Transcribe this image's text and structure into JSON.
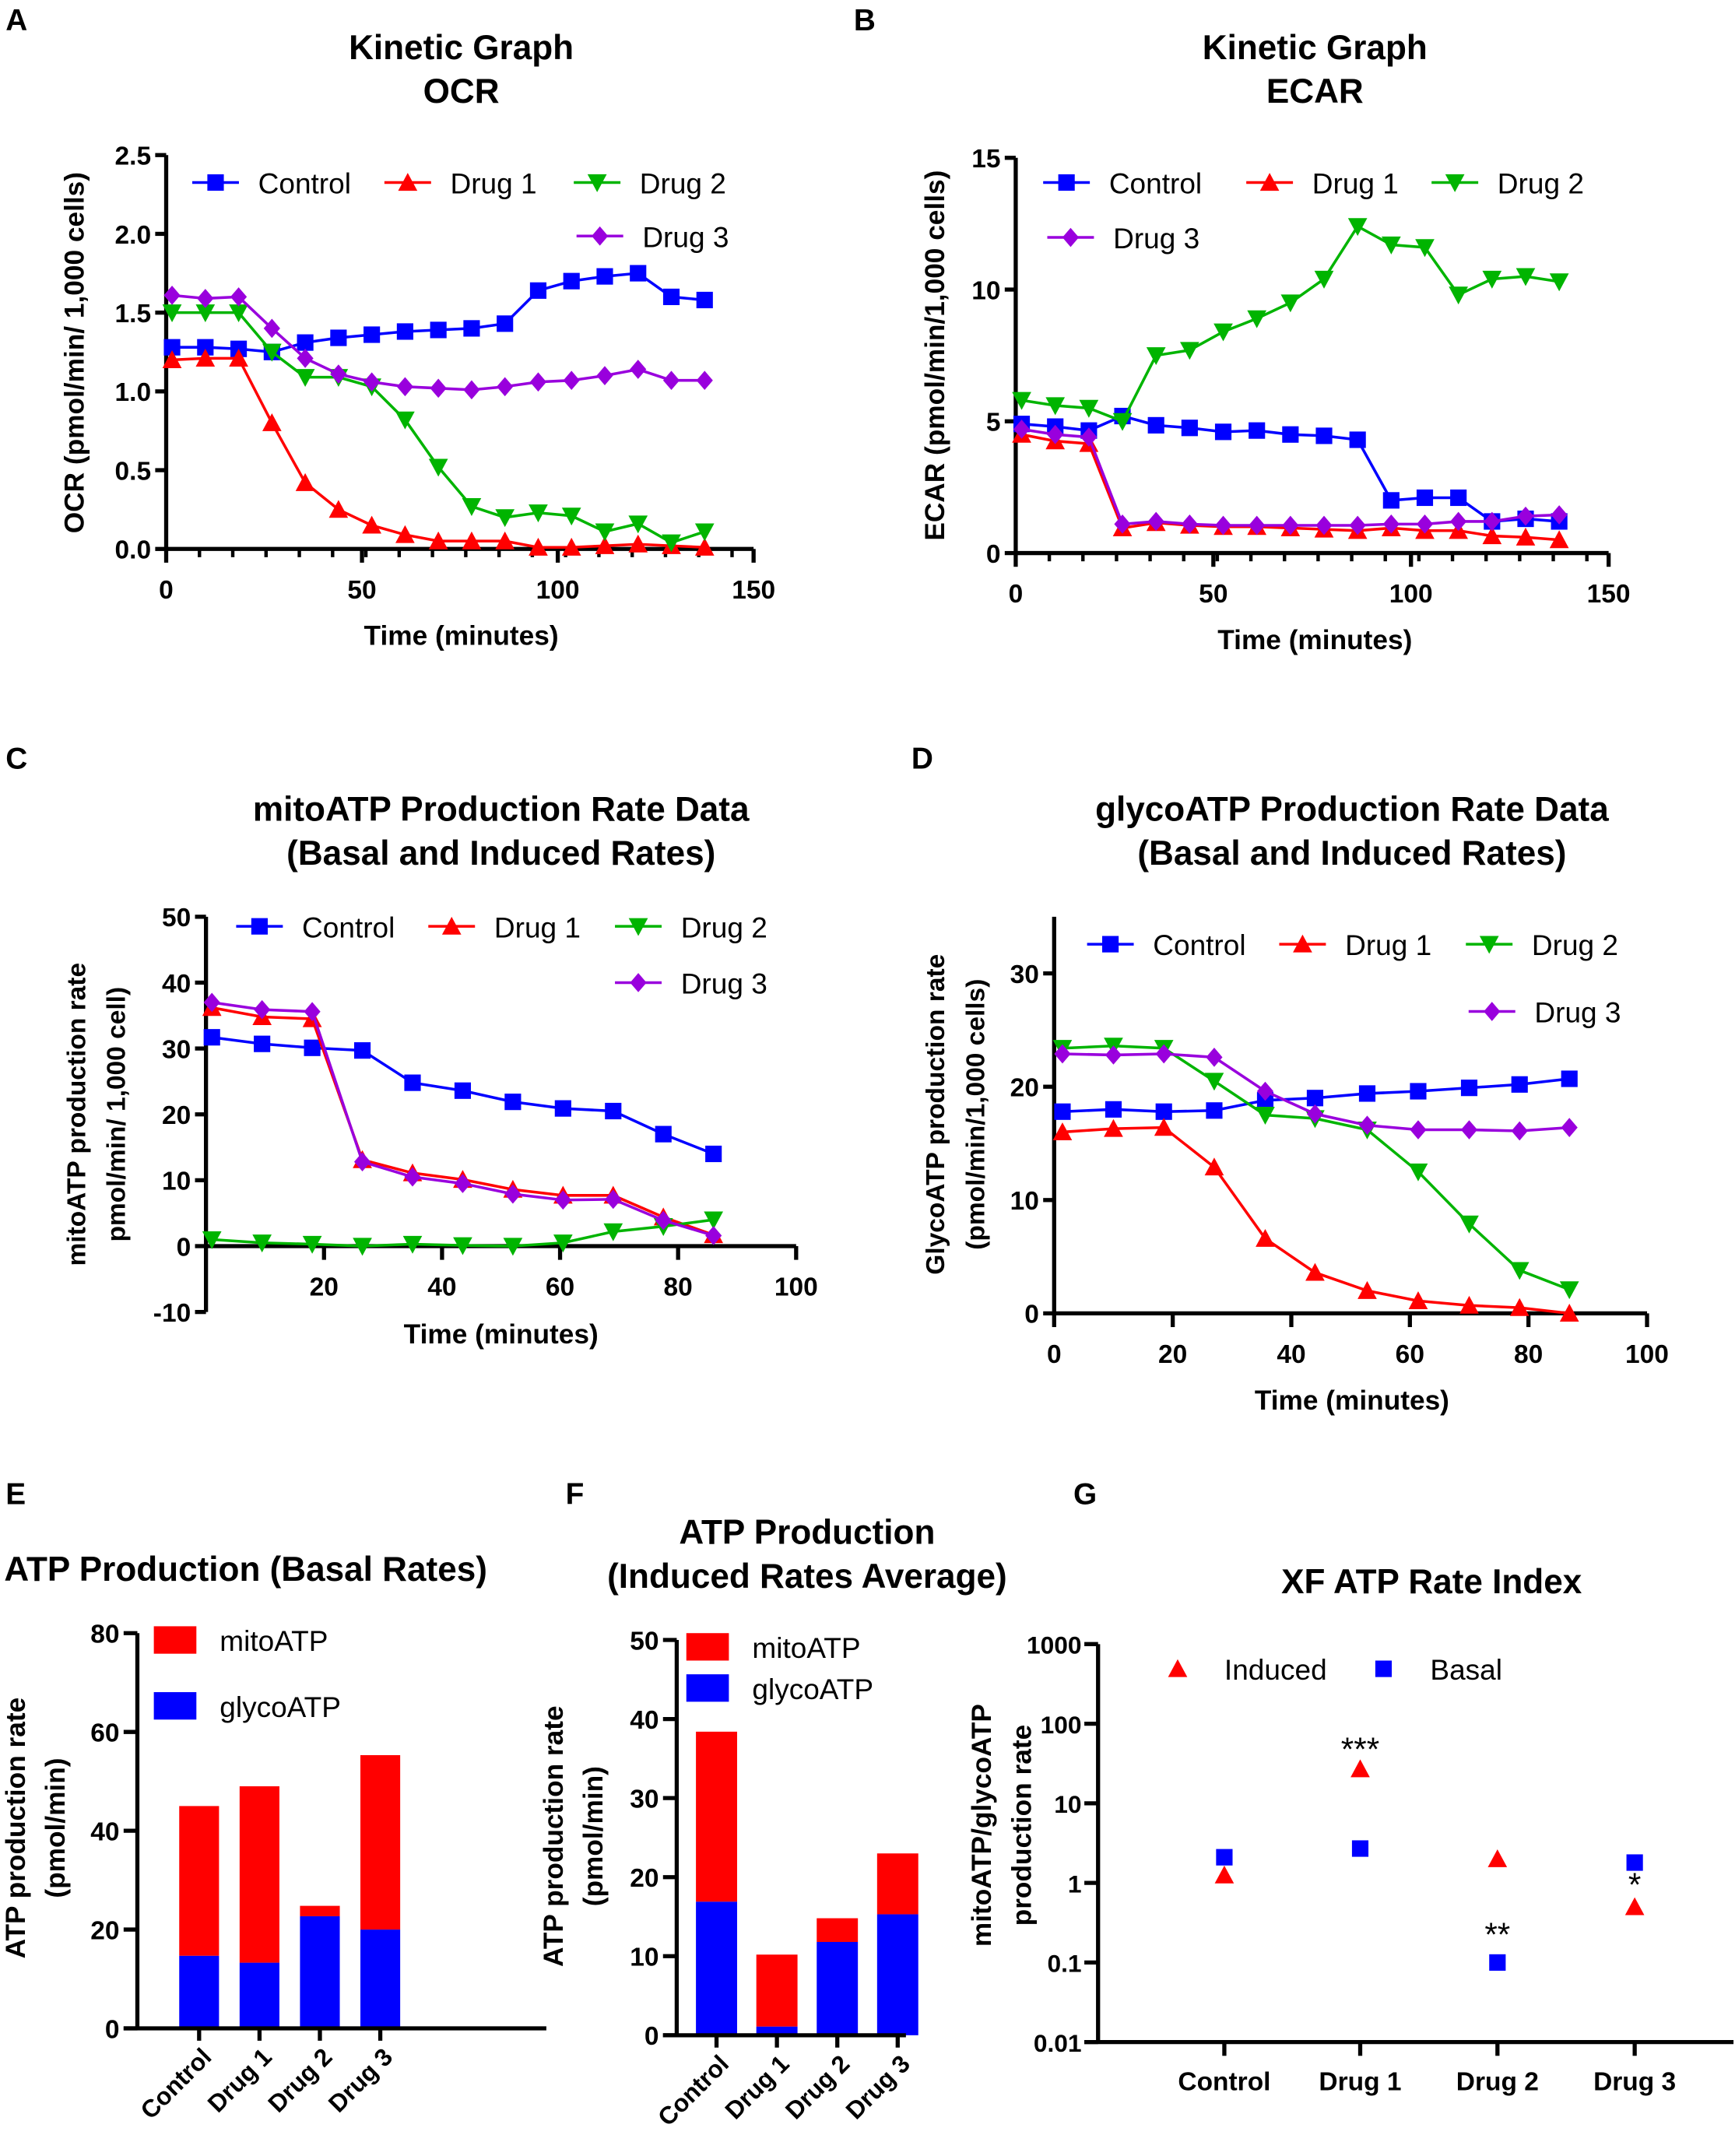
{
  "colors": {
    "Control": "#0000ff",
    "Drug 1": "#ff0000",
    "Drug 2": "#00b400",
    "Drug 3": "#9900dd",
    "mitoATP": "#ff0000",
    "glycoATP": "#0000ff",
    "Induced": "#ff0000",
    "Basal": "#0000ff"
  },
  "chart_data": [
    {
      "panel": "A",
      "type": "line",
      "title": [
        "Kinetic Graph",
        "OCR"
      ],
      "xlabel": "Time (minutes)",
      "ylabel": [
        "OCR (pmol/min/ 1,000 cells)"
      ],
      "xlim": [
        0,
        150
      ],
      "ylim": [
        0,
        2.5
      ],
      "xticks": [
        "0",
        "50",
        "100",
        "150"
      ],
      "yticks": [
        "0.0",
        "0.5",
        "1.0",
        "1.5",
        "2.0",
        "2.5"
      ],
      "legend": "top",
      "x": [
        1.5,
        10,
        18.5,
        27,
        35.5,
        44,
        52.5,
        61,
        69.5,
        78,
        86.5,
        95,
        103.5,
        112,
        120.5,
        129,
        137.5
      ],
      "series": [
        {
          "name": "Control",
          "marker": "square",
          "values": [
            1.28,
            1.28,
            1.27,
            1.25,
            1.31,
            1.34,
            1.36,
            1.38,
            1.39,
            1.4,
            1.43,
            1.64,
            1.7,
            1.73,
            1.75,
            1.6,
            1.58
          ]
        },
        {
          "name": "Drug 1",
          "marker": "triangle-up",
          "values": [
            1.2,
            1.21,
            1.21,
            0.8,
            0.42,
            0.25,
            0.15,
            0.09,
            0.05,
            0.05,
            0.05,
            0.01,
            0.01,
            0.02,
            0.03,
            0.02,
            0.01
          ]
        },
        {
          "name": "Drug 2",
          "marker": "triangle-down",
          "values": [
            1.5,
            1.5,
            1.5,
            1.25,
            1.09,
            1.09,
            1.03,
            0.82,
            0.52,
            0.27,
            0.2,
            0.23,
            0.21,
            0.11,
            0.16,
            0.04,
            0.11
          ]
        },
        {
          "name": "Drug 3",
          "marker": "diamond",
          "values": [
            1.61,
            1.59,
            1.6,
            1.4,
            1.21,
            1.11,
            1.06,
            1.03,
            1.02,
            1.01,
            1.03,
            1.06,
            1.07,
            1.1,
            1.14,
            1.07,
            1.07
          ]
        }
      ]
    },
    {
      "panel": "B",
      "type": "line",
      "title": [
        "Kinetic Graph",
        "ECAR"
      ],
      "xlabel": "Time (minutes)",
      "ylabel": [
        "ECAR (pmol/min/1,000 cells)"
      ],
      "xlim": [
        0,
        150
      ],
      "ylim": [
        0,
        15
      ],
      "xticks": [
        "0",
        "50",
        "100",
        "150"
      ],
      "yticks": [
        "0",
        "5",
        "10",
        "15"
      ],
      "legend": "top",
      "x": [
        1.5,
        10,
        18.5,
        27,
        35.5,
        44,
        52.5,
        61,
        69.5,
        78,
        86.5,
        95,
        103.5,
        112,
        120.5,
        129,
        137.5
      ],
      "series": [
        {
          "name": "Control",
          "marker": "square",
          "values": [
            4.9,
            4.8,
            4.65,
            5.2,
            4.85,
            4.75,
            4.6,
            4.65,
            4.5,
            4.45,
            4.3,
            2.0,
            2.1,
            2.1,
            1.2,
            1.3,
            1.2
          ]
        },
        {
          "name": "Drug 1",
          "marker": "triangle-up",
          "values": [
            4.5,
            4.25,
            4.15,
            0.95,
            1.15,
            1.05,
            1.0,
            1.0,
            0.95,
            0.9,
            0.85,
            0.95,
            0.85,
            0.85,
            0.65,
            0.6,
            0.5
          ]
        },
        {
          "name": "Drug 2",
          "marker": "triangle-down",
          "values": [
            5.8,
            5.6,
            5.5,
            5.0,
            7.5,
            7.7,
            8.4,
            8.9,
            9.5,
            10.4,
            12.4,
            11.7,
            11.6,
            9.8,
            10.4,
            10.5,
            10.3
          ]
        },
        {
          "name": "Drug 3",
          "marker": "diamond",
          "values": [
            4.7,
            4.5,
            4.4,
            1.1,
            1.2,
            1.1,
            1.05,
            1.05,
            1.05,
            1.05,
            1.05,
            1.1,
            1.1,
            1.2,
            1.2,
            1.4,
            1.45
          ]
        }
      ]
    },
    {
      "panel": "C",
      "type": "line",
      "title": [
        "mitoATP Production Rate Data",
        "(Basal and Induced Rates)"
      ],
      "xlabel": "Time (minutes)",
      "ylabel": [
        "mitoATP production rate",
        "pmol/min/ 1,000 cell)"
      ],
      "xlim": [
        0,
        100
      ],
      "ylim": [
        -10,
        50
      ],
      "xticks": [
        "20",
        "40",
        "60",
        "80",
        "100"
      ],
      "yticks": [
        "-10",
        "0",
        "10",
        "20",
        "30",
        "40",
        "50"
      ],
      "legend": "top",
      "x": [
        1,
        9.5,
        18,
        26.5,
        35,
        43.5,
        52,
        60.5,
        69,
        77.5,
        86
      ],
      "series": [
        {
          "name": "Control",
          "marker": "square",
          "values": [
            31.7,
            30.7,
            30.1,
            29.7,
            24.8,
            23.6,
            21.9,
            20.9,
            20.5,
            17.0,
            14.0
          ]
        },
        {
          "name": "Drug 1",
          "marker": "triangle-up",
          "values": [
            36.2,
            34.8,
            34.5,
            13.1,
            11.1,
            10.1,
            8.6,
            7.7,
            7.7,
            4.4,
            1.7
          ]
        },
        {
          "name": "Drug 2",
          "marker": "triangle-down",
          "values": [
            1.0,
            0.5,
            0.3,
            0.0,
            0.3,
            0.1,
            0.0,
            0.5,
            2.2,
            3.0,
            4.0
          ]
        },
        {
          "name": "Drug 3",
          "marker": "diamond",
          "values": [
            37.0,
            35.9,
            35.6,
            12.8,
            10.5,
            9.5,
            7.9,
            7.0,
            7.1,
            3.9,
            1.6
          ]
        }
      ]
    },
    {
      "panel": "D",
      "type": "line",
      "title": [
        "glycoATP Production Rate Data",
        "(Basal and Induced Rates)"
      ],
      "xlabel": "Time (minutes)",
      "ylabel": [
        "GlycoATP production rate",
        "(pmol/min/1,000 cells)"
      ],
      "xlim": [
        0,
        100
      ],
      "ylim": [
        0,
        35
      ],
      "xticks": [
        "0",
        "20",
        "40",
        "60",
        "80",
        "100"
      ],
      "yticks": [
        "0",
        "10",
        "20",
        "30"
      ],
      "legend": "top",
      "x": [
        1.4,
        10,
        18.5,
        27,
        35.6,
        44,
        52.8,
        61.4,
        70,
        78.5,
        86.9
      ],
      "series": [
        {
          "name": "Control",
          "marker": "square",
          "values": [
            17.8,
            18.0,
            17.8,
            17.9,
            18.8,
            19.0,
            19.4,
            19.6,
            19.9,
            20.2,
            20.7
          ]
        },
        {
          "name": "Drug 1",
          "marker": "triangle-up",
          "values": [
            16.0,
            16.3,
            16.4,
            12.9,
            6.6,
            3.6,
            2.0,
            1.1,
            0.7,
            0.5,
            0.0
          ]
        },
        {
          "name": "Drug 2",
          "marker": "triangle-down",
          "values": [
            23.4,
            23.6,
            23.4,
            20.5,
            17.5,
            17.2,
            16.2,
            12.5,
            7.9,
            3.8,
            2.1
          ]
        },
        {
          "name": "Drug 3",
          "marker": "diamond",
          "values": [
            22.9,
            22.8,
            22.9,
            22.6,
            19.6,
            17.6,
            16.6,
            16.2,
            16.2,
            16.1,
            16.4
          ]
        }
      ]
    },
    {
      "panel": "E",
      "type": "bar",
      "stacked": true,
      "title": [
        "ATP Production (Basal Rates)"
      ],
      "xlabel": "",
      "ylabel": [
        "ATP production rate",
        "(pmol/min)"
      ],
      "ylim": [
        0,
        80
      ],
      "yticks": [
        "0",
        "20",
        "40",
        "60",
        "80"
      ],
      "categories": [
        "Control",
        "Drug 1",
        "Drug 2",
        "Drug 3"
      ],
      "legend": "top",
      "series": [
        {
          "name": "mitoATP",
          "values": [
            30.3,
            35.7,
            2.1,
            35.3
          ]
        },
        {
          "name": "glycoATP",
          "values": [
            14.7,
            13.3,
            22.7,
            20.0
          ]
        }
      ]
    },
    {
      "panel": "F",
      "type": "bar",
      "stacked": true,
      "title": [
        "ATP Production",
        "(Induced Rates Average)"
      ],
      "xlabel": "",
      "ylabel": [
        "ATP production rate",
        "(pmol/min)"
      ],
      "ylim": [
        0,
        50
      ],
      "yticks": [
        "0",
        "10",
        "20",
        "30",
        "40",
        "50"
      ],
      "categories": [
        "Control",
        "Drug 1",
        "Drug 2",
        "Drug 3"
      ],
      "legend": "top",
      "series": [
        {
          "name": "mitoATP",
          "values": [
            21.5,
            9.1,
            3.0,
            7.7
          ]
        },
        {
          "name": "glycoATP",
          "values": [
            16.9,
            1.1,
            11.8,
            15.3
          ]
        }
      ]
    },
    {
      "panel": "G",
      "type": "scatter",
      "yscale": "log",
      "title": [
        "XF ATP Rate Index"
      ],
      "xlabel": "",
      "ylabel": [
        "mitoATP/glycoATP",
        "production rate"
      ],
      "ylim": [
        0.01,
        1000
      ],
      "yticks": [
        "0.01",
        "0.1",
        "1",
        "10",
        "100",
        "1000"
      ],
      "categories": [
        "Control",
        "Drug 1",
        "Drug 2",
        "Drug 3"
      ],
      "legend": "top",
      "series": [
        {
          "name": "Induced",
          "marker": "triangle-up",
          "values": [
            1.25,
            27,
            2.0,
            0.5
          ]
        },
        {
          "name": "Basal",
          "marker": "square",
          "values": [
            2.1,
            2.7,
            0.1,
            1.8
          ]
        }
      ],
      "annotations": [
        {
          "category": "Drug 1",
          "text": "***"
        },
        {
          "category": "Drug 2",
          "text": "**"
        },
        {
          "category": "Drug 3",
          "text": "*"
        }
      ]
    }
  ]
}
